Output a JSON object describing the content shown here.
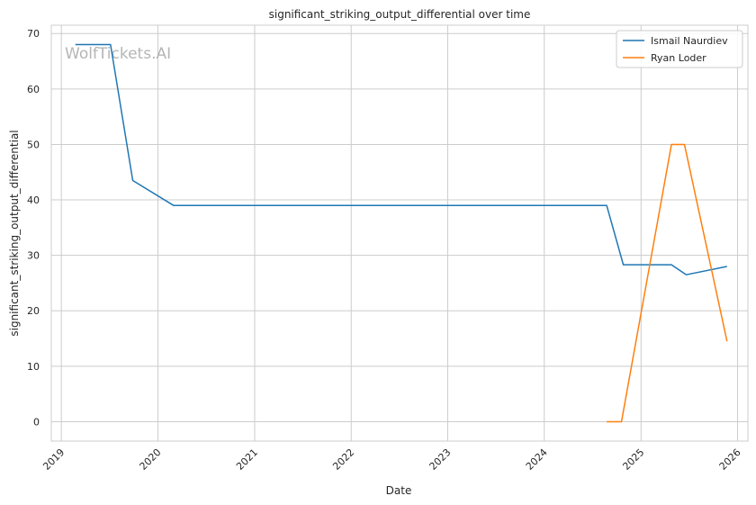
{
  "chart_data": {
    "type": "line",
    "title": "significant_striking_output_differential over time",
    "xlabel": "Date",
    "ylabel": "significant_striking_output_differential",
    "watermark": "WolfTickets.AI",
    "grid": true,
    "legend_position": "top-right",
    "x_ticks": [
      "2019",
      "2020",
      "2021",
      "2022",
      "2023",
      "2024",
      "2025",
      "2026"
    ],
    "y_ticks": [
      0,
      10,
      20,
      30,
      40,
      50,
      60,
      70
    ],
    "xlim": [
      "2018-11-24",
      "2026-02-09"
    ],
    "ylim": [
      -3.5,
      71.5
    ],
    "series": [
      {
        "name": "Ismail Naurdiev",
        "color": "#1f77b4",
        "points": [
          {
            "x": "2019-02-23",
            "y": 68
          },
          {
            "x": "2019-07-06",
            "y": 68
          },
          {
            "x": "2019-09-28",
            "y": 43.5
          },
          {
            "x": "2020-02-29",
            "y": 39
          },
          {
            "x": "2024-08-24",
            "y": 39
          },
          {
            "x": "2024-10-26",
            "y": 28.3
          },
          {
            "x": "2025-04-26",
            "y": 28.3
          },
          {
            "x": "2025-06-21",
            "y": 26.5
          },
          {
            "x": "2025-11-22",
            "y": 28
          }
        ]
      },
      {
        "name": "Ryan Loder",
        "color": "#ff7f0e",
        "points": [
          {
            "x": "2024-08-24",
            "y": 0
          },
          {
            "x": "2024-10-19",
            "y": 0
          },
          {
            "x": "2025-04-26",
            "y": 50
          },
          {
            "x": "2025-06-14",
            "y": 50
          },
          {
            "x": "2025-11-22",
            "y": 14.5
          }
        ]
      }
    ]
  }
}
